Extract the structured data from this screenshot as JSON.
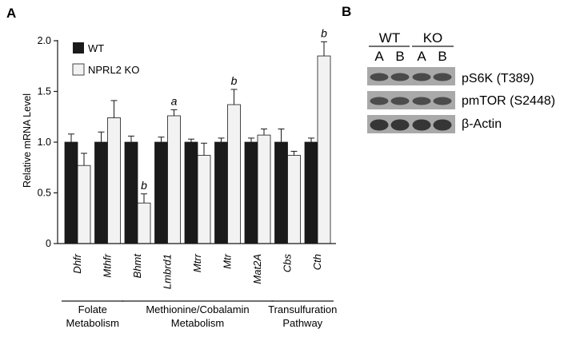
{
  "panels": {
    "a": "A",
    "b": "B"
  },
  "chart_data": {
    "type": "bar",
    "ylabel": "Relative mRNA Level",
    "ylim": [
      0,
      2.0
    ],
    "yticks": [
      "0",
      "0.5",
      "1.0",
      "1.5",
      "2.0"
    ],
    "categories": [
      "Dhfr",
      "Mthfr",
      "Bhmt",
      "Lmbrd1",
      "Mtrr",
      "Mtr",
      "Mat2A",
      "Cbs",
      "Cth"
    ],
    "series": [
      {
        "name": "WT",
        "color": "#1a1a1a",
        "values": [
          1.0,
          1.0,
          1.0,
          1.0,
          1.0,
          1.0,
          1.0,
          1.0,
          1.0
        ],
        "errors": [
          0.08,
          0.1,
          0.06,
          0.05,
          0.03,
          0.04,
          0.04,
          0.13,
          0.04
        ]
      },
      {
        "name": "NPRL2 KO",
        "color": "#f2f2f2",
        "values": [
          0.77,
          1.24,
          0.4,
          1.26,
          0.87,
          1.37,
          1.07,
          0.87,
          1.85
        ],
        "errors": [
          0.12,
          0.17,
          0.09,
          0.06,
          0.12,
          0.15,
          0.06,
          0.04,
          0.14
        ]
      }
    ],
    "significance": [
      "",
      "",
      "b",
      "a",
      "",
      "b",
      "",
      "",
      "b"
    ],
    "groups": [
      {
        "lines": [
          "Folate",
          "Metabolism"
        ],
        "from": 0,
        "to": 1
      },
      {
        "lines": [
          "Methionine/Cobalamin",
          "Metabolism"
        ],
        "from": 2,
        "to": 6
      },
      {
        "lines": [
          "Transulfuration",
          "Pathway"
        ],
        "from": 7,
        "to": 8
      }
    ],
    "legend_position": "top-left"
  },
  "western_blot": {
    "groups": [
      {
        "label": "WT",
        "lanes": [
          "A",
          "B"
        ]
      },
      {
        "label": "KO",
        "lanes": [
          "A",
          "B"
        ]
      }
    ],
    "bands": [
      "pS6K (T389)",
      "pmTOR (S2448)",
      "β-Actin"
    ]
  }
}
